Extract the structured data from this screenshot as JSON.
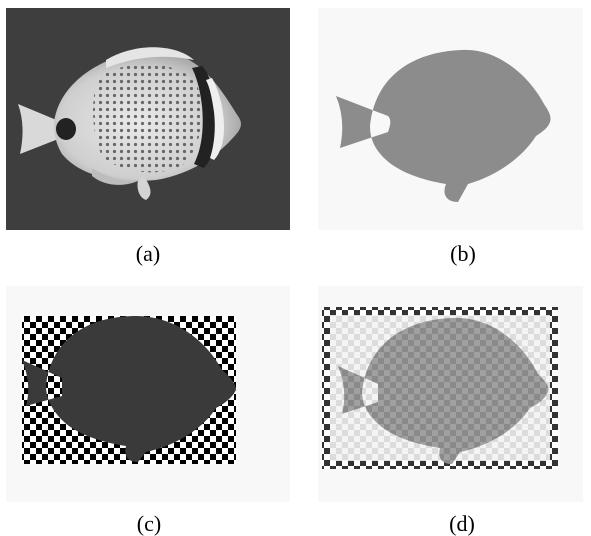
{
  "figure": {
    "captions": {
      "a": "(a)",
      "b": "(b)",
      "c": "(c)",
      "d": "(d)"
    }
  }
}
